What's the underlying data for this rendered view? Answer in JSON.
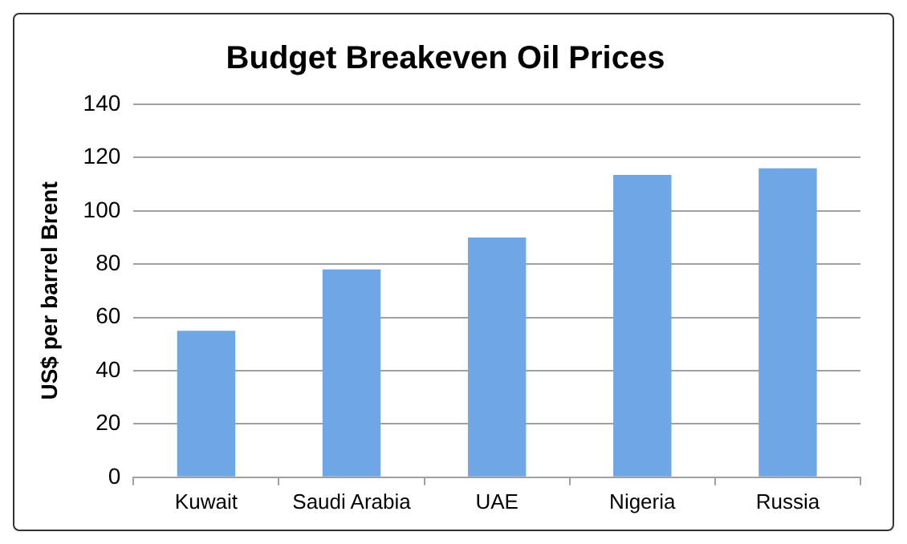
{
  "chart_data": {
    "type": "bar",
    "title": "Budget Breakeven Oil Prices",
    "ylabel": "US$ per barrel Brent",
    "categories": [
      "Kuwait",
      "Saudi Arabia",
      "UAE",
      "Nigeria",
      "Russia"
    ],
    "values": [
      55,
      78,
      90,
      113.5,
      116
    ],
    "color": "#6fa6e6",
    "ylim": [
      0,
      140
    ],
    "yticks": [
      0,
      20,
      40,
      60,
      80,
      100,
      120,
      140
    ],
    "grid": "y",
    "legend": false
  }
}
